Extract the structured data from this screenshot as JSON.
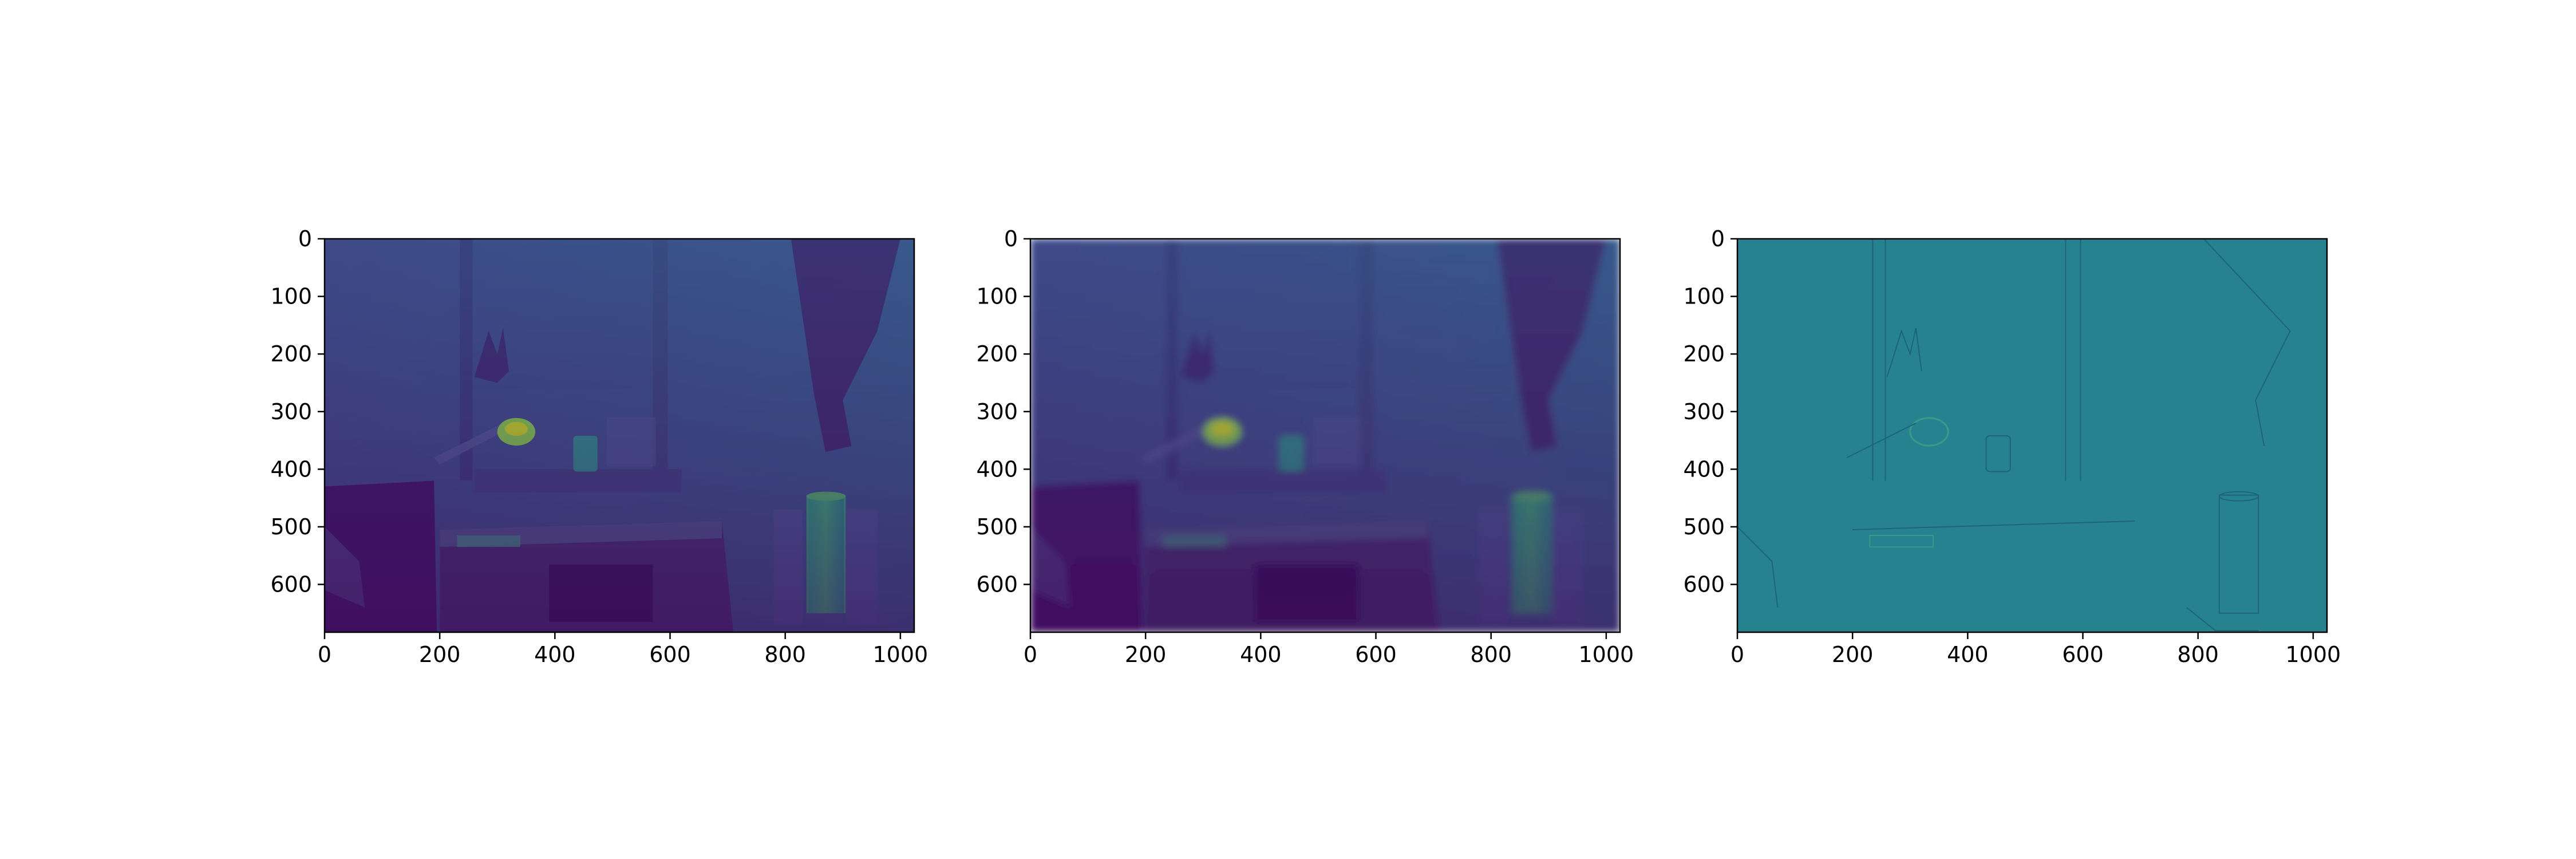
{
  "figure": {
    "background": "#ffffff",
    "colormap": "viridis",
    "axis_color": "#000000"
  },
  "chart_data": [
    {
      "type": "heatmap",
      "content": "viridis-colormapped grayscale image of a room with a desk lamp, desk, window with curtain and a glowing cylinder lamp",
      "xlim": [
        0,
        1024
      ],
      "ylim": [
        683,
        0
      ],
      "xticks": [
        0,
        200,
        400,
        600,
        800,
        1000
      ],
      "yticks": [
        0,
        100,
        200,
        300,
        400,
        500,
        600
      ],
      "xticklabels": [
        "0",
        "200",
        "400",
        "600",
        "800",
        "1000"
      ],
      "yticklabels": [
        "0",
        "100",
        "200",
        "300",
        "400",
        "500",
        "600"
      ],
      "variant": "original"
    },
    {
      "type": "heatmap",
      "content": "viridis-colormapped blurred version of the same room image",
      "xlim": [
        0,
        1024
      ],
      "ylim": [
        683,
        0
      ],
      "xticks": [
        0,
        200,
        400,
        600,
        800,
        1000
      ],
      "yticks": [
        0,
        100,
        200,
        300,
        400,
        500,
        600
      ],
      "xticklabels": [
        "0",
        "200",
        "400",
        "600",
        "800",
        "1000"
      ],
      "yticklabels": [
        "0",
        "100",
        "200",
        "300",
        "400",
        "500",
        "600"
      ],
      "variant": "blurred"
    },
    {
      "type": "heatmap",
      "content": "viridis-colormapped difference image (original minus blurred) showing faint edges on a uniform teal field",
      "xlim": [
        0,
        1024
      ],
      "ylim": [
        683,
        0
      ],
      "xticks": [
        0,
        200,
        400,
        600,
        800,
        1000
      ],
      "yticks": [
        0,
        100,
        200,
        300,
        400,
        500,
        600
      ],
      "xticklabels": [
        "0",
        "200",
        "400",
        "600",
        "800",
        "1000"
      ],
      "yticklabels": [
        "0",
        "100",
        "200",
        "300",
        "400",
        "500",
        "600"
      ],
      "variant": "edges"
    }
  ]
}
